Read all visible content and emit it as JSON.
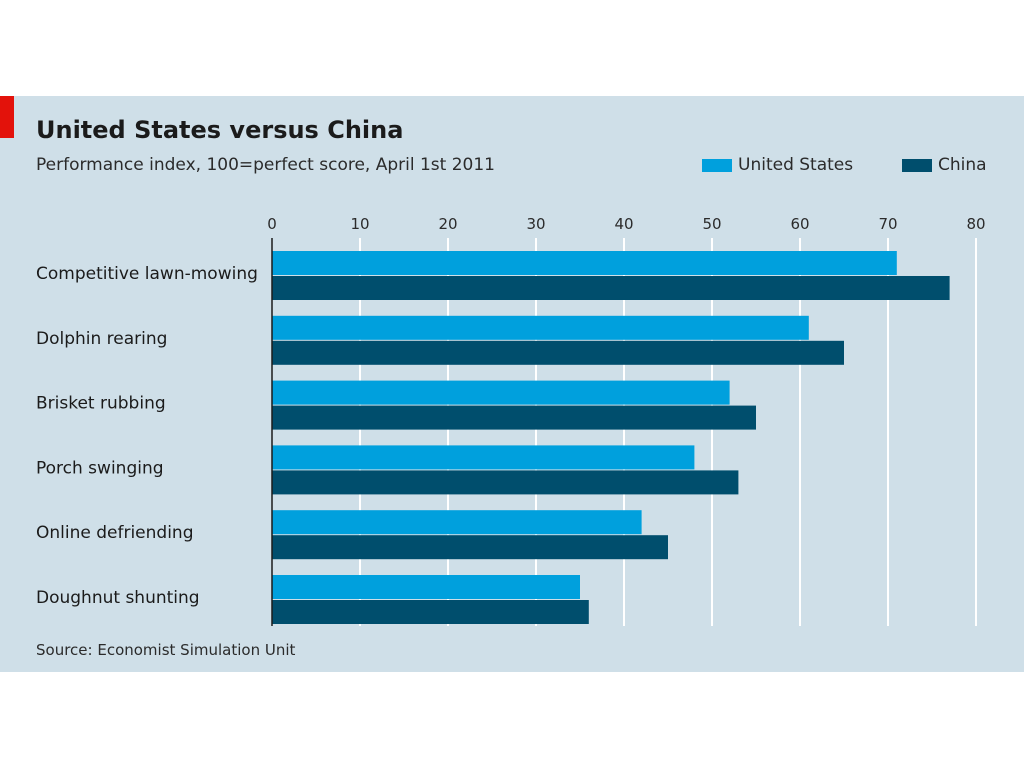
{
  "chart_data": {
    "type": "bar",
    "orientation": "horizontal",
    "title": "United States versus China",
    "subtitle": "Performance index, 100=perfect score, April 1st 2011",
    "source": "Source: Economist Simulation Unit",
    "categories": [
      "Competitive lawn-mowing",
      "Dolphin rearing",
      "Brisket rubbing",
      "Porch swinging",
      "Online defriending",
      "Doughnut shunting"
    ],
    "series": [
      {
        "name": "United States",
        "color": "#00a0dd",
        "values": [
          71,
          61,
          52,
          48,
          42,
          35
        ]
      },
      {
        "name": "China",
        "color": "#004e6d",
        "values": [
          77,
          65,
          55,
          53,
          45,
          36
        ]
      }
    ],
    "xlim": [
      0,
      80
    ],
    "xticks": [
      "0",
      "10",
      "20",
      "30",
      "40",
      "50",
      "60",
      "70",
      "80"
    ],
    "grid": true,
    "legend_position": "top-right"
  }
}
